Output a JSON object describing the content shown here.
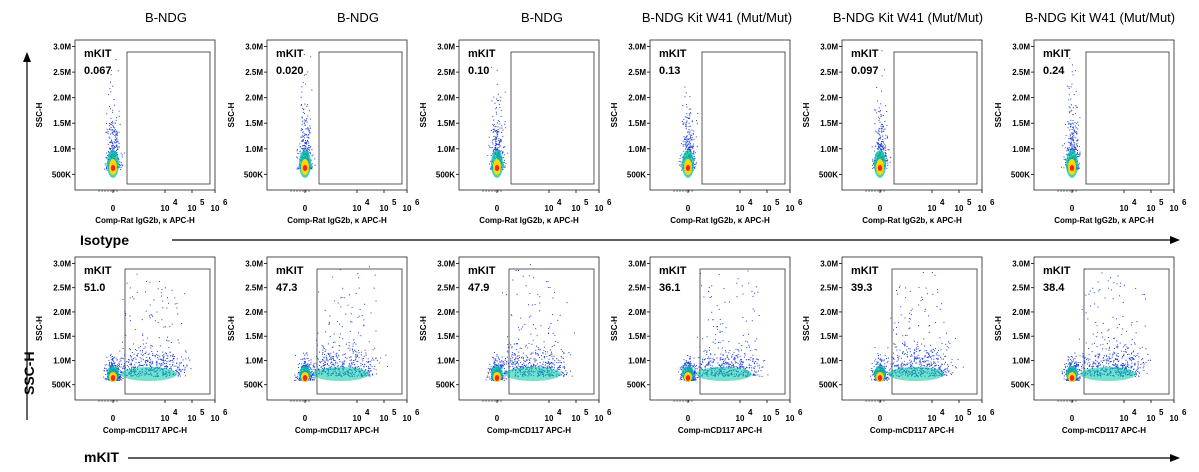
{
  "columns": [
    "B-NDG",
    "B-NDG",
    "B-NDG",
    "B-NDG Kit W41 (Mut/Mut)",
    "B-NDG Kit W41 (Mut/Mut)",
    "B-NDG Kit W41 (Mut/Mut)"
  ],
  "y_axis_title": "SSC-H",
  "row_labels": {
    "isotype": "Isotype",
    "mkit": "mKIT"
  },
  "colors": {
    "point": "#1f3fd6",
    "mid": "#00c8a0",
    "hot": "#ffd700",
    "core": "#ff2020",
    "axis": "#000000"
  },
  "chart_data": [
    {
      "type": "scatter",
      "row": "Isotype",
      "ylabel": "SSC-H",
      "xlabel": "Comp-Rat IgG2b, κ APC-H",
      "yticks": [
        "500K",
        "1.0M",
        "1.5M",
        "2.0M",
        "2.5M",
        "3.0M"
      ],
      "xticks": [
        "0",
        "10",
        "10",
        "10"
      ],
      "xtick_exponents": [
        "",
        "4",
        "5",
        "6"
      ],
      "gate_label": "mKIT",
      "panels": [
        {
          "column": "B-NDG",
          "gate_percent": "0.067"
        },
        {
          "column": "B-NDG",
          "gate_percent": "0.020"
        },
        {
          "column": "B-NDG",
          "gate_percent": "0.10"
        },
        {
          "column": "B-NDG Kit W41 (Mut/Mut)",
          "gate_percent": "0.13"
        },
        {
          "column": "B-NDG Kit W41 (Mut/Mut)",
          "gate_percent": "0.097"
        },
        {
          "column": "B-NDG Kit W41 (Mut/Mut)",
          "gate_percent": "0.24"
        }
      ]
    },
    {
      "type": "scatter",
      "row": "mKIT",
      "ylabel": "SSC-H",
      "xlabel": "Comp-mCD117 APC-H",
      "yticks": [
        "500K",
        "1.0M",
        "1.5M",
        "2.0M",
        "2.5M",
        "3.0M"
      ],
      "xticks": [
        "0",
        "10",
        "10",
        "10"
      ],
      "xtick_exponents": [
        "",
        "4",
        "5",
        "6"
      ],
      "gate_label": "mKIT",
      "panels": [
        {
          "column": "B-NDG",
          "gate_percent": "51.0"
        },
        {
          "column": "B-NDG",
          "gate_percent": "47.3"
        },
        {
          "column": "B-NDG",
          "gate_percent": "47.9"
        },
        {
          "column": "B-NDG Kit W41 (Mut/Mut)",
          "gate_percent": "36.1"
        },
        {
          "column": "B-NDG Kit W41 (Mut/Mut)",
          "gate_percent": "39.3"
        },
        {
          "column": "B-NDG Kit W41 (Mut/Mut)",
          "gate_percent": "38.4"
        }
      ]
    }
  ]
}
